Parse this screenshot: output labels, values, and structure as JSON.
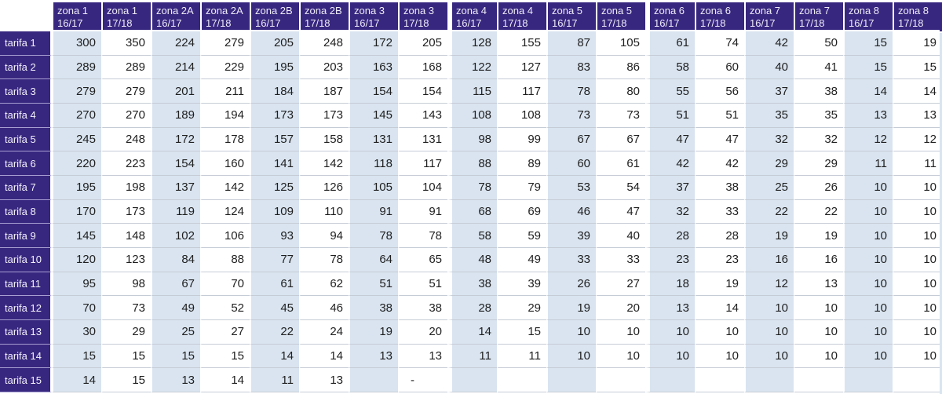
{
  "colors": {
    "header_bg": "#38277f",
    "row_label_bg": "#38277f",
    "cell_blue": "#d9e4f0",
    "cell_white": "#ffffff",
    "grid_line": "#c6ccd6",
    "label_divider": "#a79ed2",
    "header_text": "#eeebf8",
    "cell_text": "#1f1f1f"
  },
  "chart_data": {
    "type": "table",
    "corner_label": "",
    "columns": [
      {
        "zone": "zona 1",
        "season": "16/17"
      },
      {
        "zone": "zona 1",
        "season": "17/18"
      },
      {
        "zone": "zona 2A",
        "season": "16/17"
      },
      {
        "zone": "zona 2A",
        "season": "17/18"
      },
      {
        "zone": "zona 2B",
        "season": "16/17"
      },
      {
        "zone": "zona 2B",
        "season": "17/18"
      },
      {
        "zone": "zona 3",
        "season": "16/17"
      },
      {
        "zone": "zona 3",
        "season": "17/18"
      },
      {
        "zone": "zona 4",
        "season": "16/17"
      },
      {
        "zone": "zona 4",
        "season": "17/18"
      },
      {
        "zone": "zona 5",
        "season": "16/17"
      },
      {
        "zone": "zona 5",
        "season": "17/18"
      },
      {
        "zone": "zona 6",
        "season": "16/17"
      },
      {
        "zone": "zona 6",
        "season": "17/18"
      },
      {
        "zone": "zona 7",
        "season": "16/17"
      },
      {
        "zone": "zona 7",
        "season": "17/18"
      },
      {
        "zone": "zona 8",
        "season": "16/17"
      },
      {
        "zone": "zona 8",
        "season": "17/18"
      }
    ],
    "rows": [
      {
        "label": "tarifa 1",
        "values": [
          300,
          350,
          224,
          279,
          205,
          248,
          172,
          205,
          128,
          155,
          87,
          105,
          61,
          74,
          42,
          50,
          15,
          19
        ]
      },
      {
        "label": "tarifa 2",
        "values": [
          289,
          289,
          214,
          229,
          195,
          203,
          163,
          168,
          122,
          127,
          83,
          86,
          58,
          60,
          40,
          41,
          15,
          15
        ]
      },
      {
        "label": "tarifa 3",
        "values": [
          279,
          279,
          201,
          211,
          184,
          187,
          154,
          154,
          115,
          117,
          78,
          80,
          55,
          56,
          37,
          38,
          14,
          14
        ]
      },
      {
        "label": "tarifa 4",
        "values": [
          270,
          270,
          189,
          194,
          173,
          173,
          145,
          143,
          108,
          108,
          73,
          73,
          51,
          51,
          35,
          35,
          13,
          13
        ]
      },
      {
        "label": "tarifa 5",
        "values": [
          245,
          248,
          172,
          178,
          157,
          158,
          131,
          131,
          98,
          99,
          67,
          67,
          47,
          47,
          32,
          32,
          12,
          12
        ]
      },
      {
        "label": "tarifa 6",
        "values": [
          220,
          223,
          154,
          160,
          141,
          142,
          118,
          117,
          88,
          89,
          60,
          61,
          42,
          42,
          29,
          29,
          11,
          11
        ]
      },
      {
        "label": "tarifa 7",
        "values": [
          195,
          198,
          137,
          142,
          125,
          126,
          105,
          104,
          78,
          79,
          53,
          54,
          37,
          38,
          25,
          26,
          10,
          10
        ]
      },
      {
        "label": "tarifa 8",
        "values": [
          170,
          173,
          119,
          124,
          109,
          110,
          91,
          91,
          68,
          69,
          46,
          47,
          32,
          33,
          22,
          22,
          10,
          10
        ]
      },
      {
        "label": "tarifa 9",
        "values": [
          145,
          148,
          102,
          106,
          93,
          94,
          78,
          78,
          58,
          59,
          39,
          40,
          28,
          28,
          19,
          19,
          10,
          10
        ]
      },
      {
        "label": "tarifa 10",
        "values": [
          120,
          123,
          84,
          88,
          77,
          78,
          64,
          65,
          48,
          49,
          33,
          33,
          23,
          23,
          16,
          16,
          10,
          10
        ]
      },
      {
        "label": "tarifa 11",
        "values": [
          95,
          98,
          67,
          70,
          61,
          62,
          51,
          51,
          38,
          39,
          26,
          27,
          18,
          19,
          12,
          13,
          10,
          10
        ]
      },
      {
        "label": "tarifa 12",
        "values": [
          70,
          73,
          49,
          52,
          45,
          46,
          38,
          38,
          28,
          29,
          19,
          20,
          13,
          14,
          10,
          10,
          10,
          10
        ]
      },
      {
        "label": "tarifa 13",
        "values": [
          30,
          29,
          25,
          27,
          22,
          24,
          19,
          20,
          14,
          15,
          10,
          10,
          10,
          10,
          10,
          10,
          10,
          10
        ]
      },
      {
        "label": "tarifa 14",
        "values": [
          15,
          15,
          15,
          15,
          14,
          14,
          13,
          13,
          11,
          11,
          10,
          10,
          10,
          10,
          10,
          10,
          10,
          10
        ]
      },
      {
        "label": "tarifa 15",
        "values": [
          14,
          15,
          13,
          14,
          11,
          13,
          "",
          "-",
          "",
          "",
          "",
          "",
          "",
          "",
          "",
          "",
          "",
          ""
        ]
      }
    ]
  }
}
